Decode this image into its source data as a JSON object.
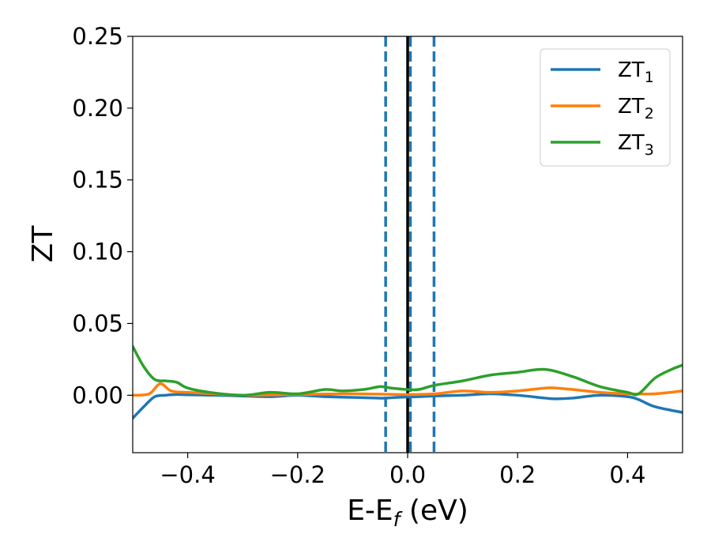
{
  "chart_data": {
    "type": "line",
    "title": "",
    "xlabel": {
      "main": "E-E",
      "sub": "f",
      "tail": " (eV)"
    },
    "ylabel": "ZT",
    "xlim": [
      -0.5,
      0.5
    ],
    "ylim": [
      -0.04,
      0.25
    ],
    "xticks": [
      -0.4,
      -0.2,
      0.0,
      0.2,
      0.4
    ],
    "xtick_labels": [
      "−0.4",
      "−0.2",
      "0.0",
      "0.2",
      "0.4"
    ],
    "yticks": [
      0.0,
      0.05,
      0.1,
      0.15,
      0.2,
      0.25
    ],
    "ytick_labels": [
      "0.00",
      "0.05",
      "0.10",
      "0.15",
      "0.20",
      "0.25"
    ],
    "grid": false,
    "legend_position": "top-right",
    "vertical_lines": [
      {
        "x": -0.04,
        "style": "dashed",
        "color": "#1f77b4"
      },
      {
        "x": 0.005,
        "style": "dashed",
        "color": "#1f77b4"
      },
      {
        "x": 0.048,
        "style": "dashed",
        "color": "#1f77b4"
      },
      {
        "x": 0.0,
        "style": "solid",
        "color": "#000000"
      }
    ],
    "series": [
      {
        "name": "ZT",
        "sub": "1",
        "color": "#1f77b4",
        "x": [
          -0.5,
          -0.48,
          -0.46,
          -0.44,
          -0.42,
          -0.4,
          -0.35,
          -0.3,
          -0.25,
          -0.2,
          -0.15,
          -0.1,
          -0.05,
          -0.04,
          -0.02,
          0.0,
          0.02,
          0.05,
          0.1,
          0.15,
          0.2,
          0.25,
          0.27,
          0.3,
          0.35,
          0.4,
          0.42,
          0.45,
          0.5
        ],
        "y": [
          -0.016,
          -0.008,
          -0.001,
          0.0,
          0.0005,
          0.0003,
          0.0,
          -0.0005,
          -0.001,
          0.0,
          -0.001,
          -0.0015,
          -0.002,
          -0.002,
          -0.0015,
          -0.0012,
          -0.001,
          -0.0005,
          0.0,
          0.001,
          0.0,
          -0.002,
          -0.0025,
          -0.002,
          0.0,
          -0.001,
          -0.003,
          -0.008,
          -0.012
        ]
      },
      {
        "name": "ZT",
        "sub": "2",
        "color": "#ff7f0e",
        "x": [
          -0.5,
          -0.47,
          -0.45,
          -0.43,
          -0.4,
          -0.35,
          -0.3,
          -0.2,
          -0.1,
          0.0,
          0.05,
          0.1,
          0.15,
          0.2,
          0.25,
          0.27,
          0.3,
          0.35,
          0.4,
          0.45,
          0.5
        ],
        "y": [
          0.0,
          0.001,
          0.008,
          0.003,
          0.002,
          0.001,
          0.0,
          0.0005,
          0.001,
          0.0005,
          0.001,
          0.003,
          0.002,
          0.003,
          0.005,
          0.005,
          0.004,
          0.002,
          0.001,
          0.001,
          0.003
        ]
      },
      {
        "name": "ZT",
        "sub": "3",
        "color": "#2ca02c",
        "x": [
          -0.5,
          -0.48,
          -0.46,
          -0.44,
          -0.42,
          -0.4,
          -0.36,
          -0.3,
          -0.25,
          -0.2,
          -0.15,
          -0.12,
          -0.08,
          -0.05,
          -0.03,
          0.0,
          0.02,
          0.05,
          0.1,
          0.15,
          0.2,
          0.25,
          0.3,
          0.35,
          0.4,
          0.42,
          0.45,
          0.48,
          0.5
        ],
        "y": [
          0.034,
          0.02,
          0.011,
          0.01,
          0.009,
          0.005,
          0.002,
          0.0,
          0.002,
          0.001,
          0.004,
          0.003,
          0.004,
          0.006,
          0.005,
          0.004,
          0.004,
          0.007,
          0.01,
          0.014,
          0.016,
          0.018,
          0.013,
          0.006,
          0.002,
          0.001,
          0.012,
          0.018,
          0.021
        ]
      }
    ]
  }
}
